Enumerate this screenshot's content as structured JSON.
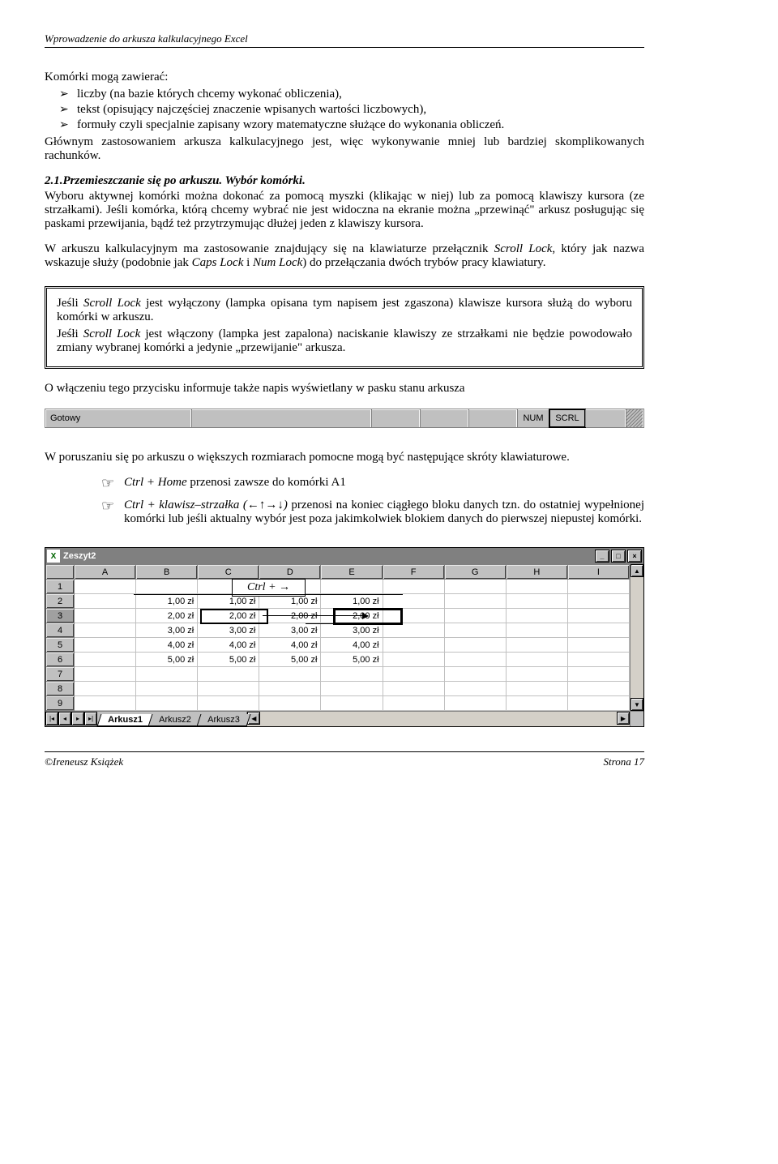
{
  "header": {
    "title": "Wprowadzenie do arkusza kalkulacyjnego Excel"
  },
  "intro_line": "Komórki mogą zawierać:",
  "bullets": [
    "liczby (na bazie których chcemy wykonać obliczenia),",
    "tekst (opisujący najczęściej znaczenie wpisanych wartości liczbowych),",
    "formuły czyli specjalnie zapisany wzory matematyczne służące do wykonania obliczeń."
  ],
  "para1": "Głównym zastosowaniem arkusza kalkulacyjnego jest, więc wykonywanie mniej lub bardziej skomplikowanych rachunków.",
  "section_head": "2.1.Przemieszczanie się po arkuszu. Wybór komórki.",
  "para2": "Wyboru aktywnej komórki można dokonać za pomocą myszki (klikając w niej) lub za pomocą klawiszy kursora (ze strzałkami). Jeśli komórka, którą chcemy wybrać nie jest widoczna na ekranie można „przewinąć\" arkusz posługując się paskami przewijania, bądź też przytrzymując dłużej jeden z klawiszy kursora.",
  "para3_pre": "W arkuszu kalkulacyjnym ma zastosowanie znajdujący się na klawiaturze przełącznik ",
  "para3_scroll": "Scroll Lock",
  "para3_mid": ", który jak nazwa wskazuje służy (podobnie jak ",
  "para3_caps": "Caps Lock",
  "para3_and": " i ",
  "para3_num": "Num Lock",
  "para3_post": ") do przełączania dwóch trybów pracy klawiatury.",
  "box": {
    "p1_pre": "Jeśli ",
    "p1_sl": "Scroll Lock",
    "p1_post": " jest wyłączony (lampka opisana tym napisem jest zgaszona) klawisze kursora służą do wyboru komórki w arkuszu.",
    "p2_pre": "Jeśłi ",
    "p2_sl": "Scroll Lock",
    "p2_post": " jest włączony (lampka jest zapalona) naciskanie klawiszy ze strzałkami nie będzie powodowało zmiany wybranej komórki a jedynie „przewijanie\" arkusza."
  },
  "para4": "O włączeniu tego przycisku informuje także napis wyświetlany w pasku stanu arkusza",
  "statusbar": {
    "ready": "Gotowy",
    "num": "NUM",
    "scrl": "SCRL"
  },
  "para5": "W poruszaniu się po arkuszu o większych rozmiarach pomocne mogą być następujące skróty klawiaturowe.",
  "shortcuts": {
    "s1_key": "Ctrl + Home",
    "s1_txt": " przenosi zawsze do komórki A1",
    "s2_key": "Ctrl + klawisz–strzałka (←↑→↓)",
    "s2_txt": " przenosi na koniec ciągłego bloku danych tzn. do ostatniej wypełnionej komórki lub jeśli aktualny wybór jest poza jakimkolwiek blokiem danych do pierwszej niepustej komórki."
  },
  "excel": {
    "title": "Zeszyt2",
    "columns": [
      "A",
      "B",
      "C",
      "D",
      "E",
      "F",
      "G",
      "H",
      "I"
    ],
    "rows": [
      {
        "n": "1",
        "cells": [
          "",
          "",
          "",
          "",
          "",
          "",
          "",
          "",
          ""
        ]
      },
      {
        "n": "2",
        "cells": [
          "",
          "1,00 zł",
          "1,00 zł",
          "1,00 zł",
          "1,00 zł",
          "",
          "",
          "",
          ""
        ]
      },
      {
        "n": "3",
        "cells": [
          "",
          "2,00 zł",
          "2,00 zł",
          "2,00 zł",
          "2,00 zł",
          "",
          "",
          "",
          ""
        ]
      },
      {
        "n": "4",
        "cells": [
          "",
          "3,00 zł",
          "3,00 zł",
          "3,00 zł",
          "3,00 zł",
          "",
          "",
          "",
          ""
        ]
      },
      {
        "n": "5",
        "cells": [
          "",
          "4,00 zł",
          "4,00 zł",
          "4,00 zł",
          "4,00 zł",
          "",
          "",
          "",
          ""
        ]
      },
      {
        "n": "6",
        "cells": [
          "",
          "5,00 zł",
          "5,00 zł",
          "5,00 zł",
          "5,00 zł",
          "",
          "",
          "",
          ""
        ]
      },
      {
        "n": "7",
        "cells": [
          "",
          "",
          "",
          "",
          "",
          "",
          "",
          "",
          ""
        ]
      },
      {
        "n": "8",
        "cells": [
          "",
          "",
          "",
          "",
          "",
          "",
          "",
          "",
          ""
        ]
      },
      {
        "n": "9",
        "cells": [
          "",
          "",
          "",
          "",
          "",
          "",
          "",
          "",
          ""
        ]
      }
    ],
    "tabs": [
      "Arkusz1",
      "Arkusz2",
      "Arkusz3"
    ],
    "overlay_label": "Ctrl + →"
  },
  "footer": {
    "author": "©Ireneusz Książek",
    "page": "Strona 17"
  }
}
